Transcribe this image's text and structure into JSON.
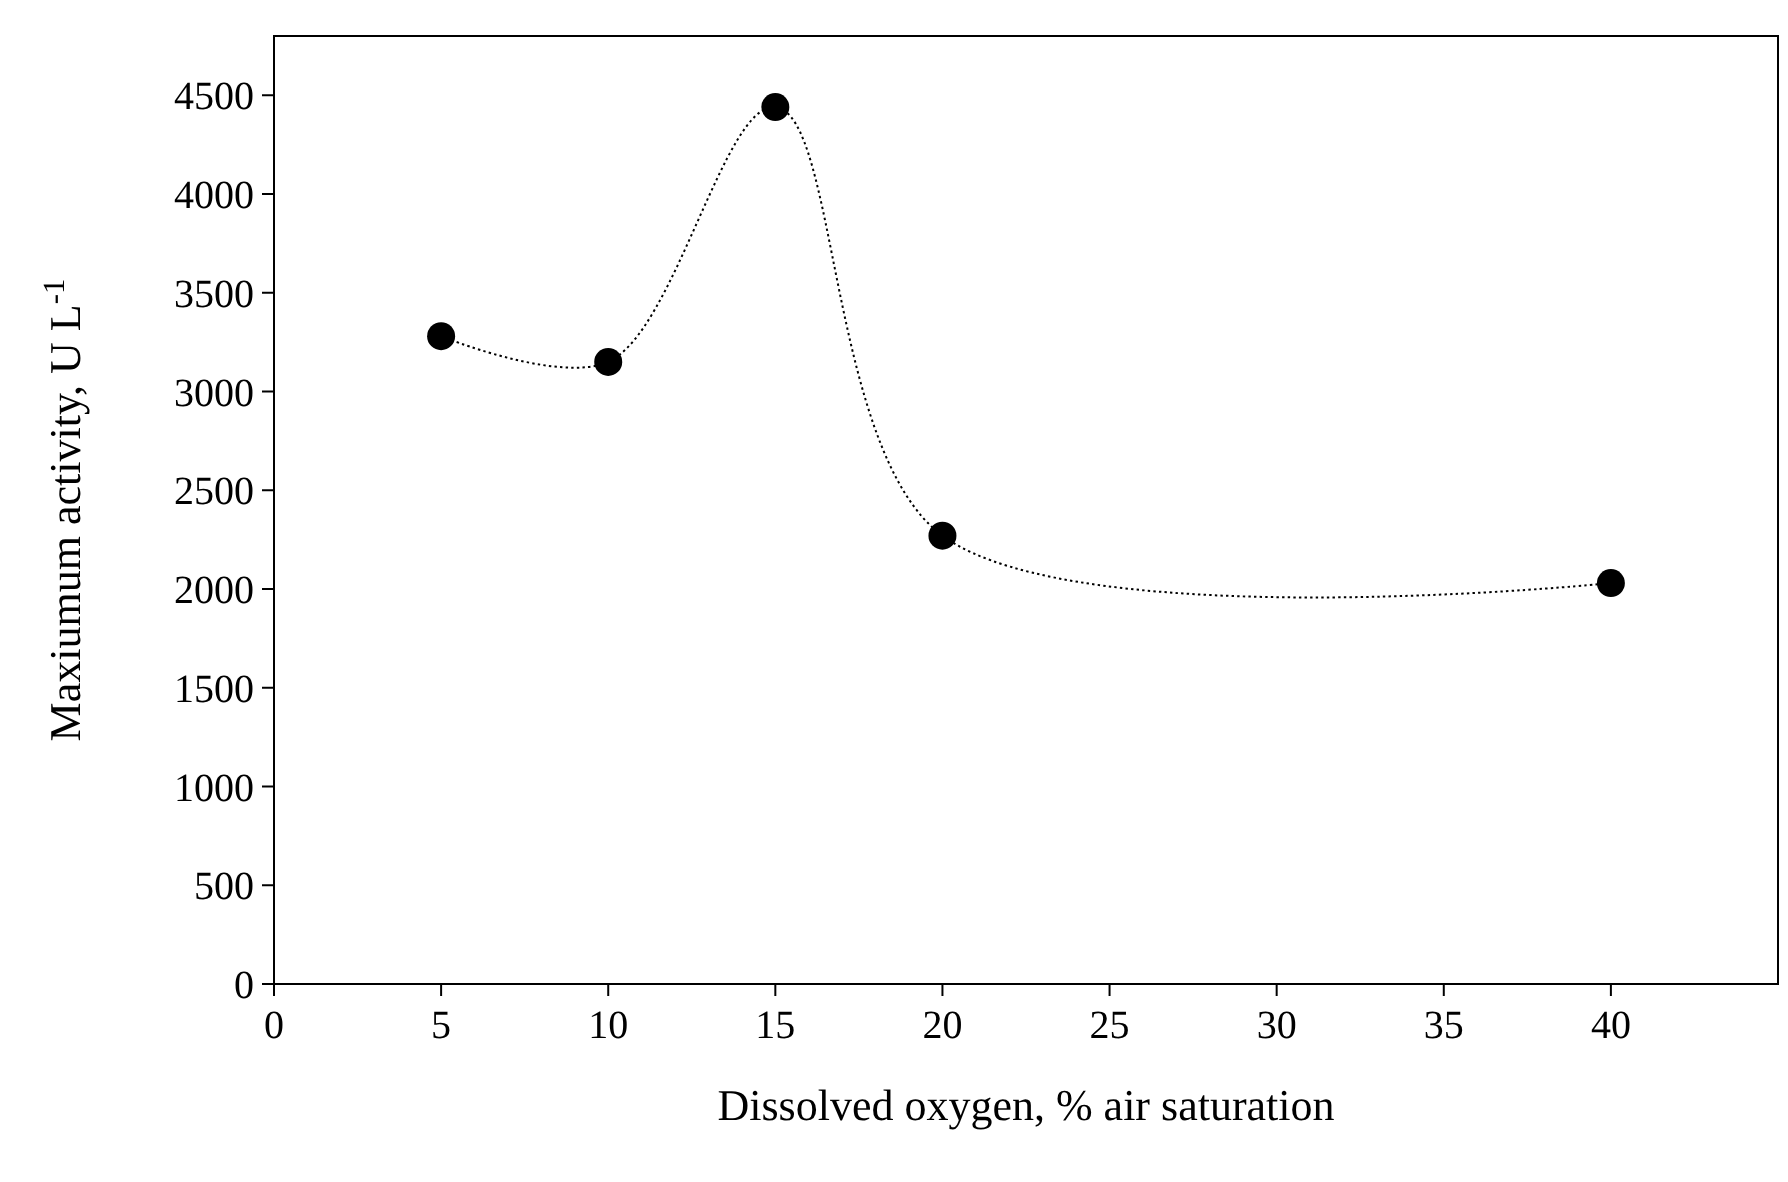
{
  "chart_data": {
    "type": "line",
    "xlabel": "Dissolved oxygen, % air saturation",
    "ylabel": "Maxiumum activity, U L$^{-1}$",
    "x": [
      5,
      10,
      15,
      20,
      40
    ],
    "series": [
      {
        "color": "#000000",
        "values": [
          3280,
          3150,
          4440,
          2270,
          2030
        ]
      }
    ],
    "xlim": [
      0,
      45
    ],
    "xticks": [
      0,
      5,
      10,
      15,
      20,
      25,
      30,
      35,
      40
    ],
    "ylim": [
      0,
      4800
    ],
    "yticks": [
      0,
      500,
      1000,
      1500,
      2000,
      2500,
      3000,
      3500,
      4000,
      4500
    ],
    "marker": "circle",
    "line_style": "dotted",
    "grid": false
  }
}
